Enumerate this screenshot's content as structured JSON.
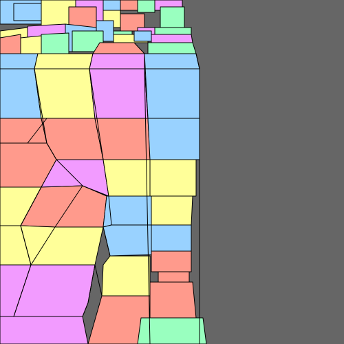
{
  "scene": {
    "background_color": "#666666",
    "outline_color": "#000000",
    "palette": {
      "pink": "#ff9a8c",
      "blue": "#99d2ff",
      "yellow": "#ffff99",
      "purple": "#f29bff",
      "green": "#99ffbf"
    }
  }
}
